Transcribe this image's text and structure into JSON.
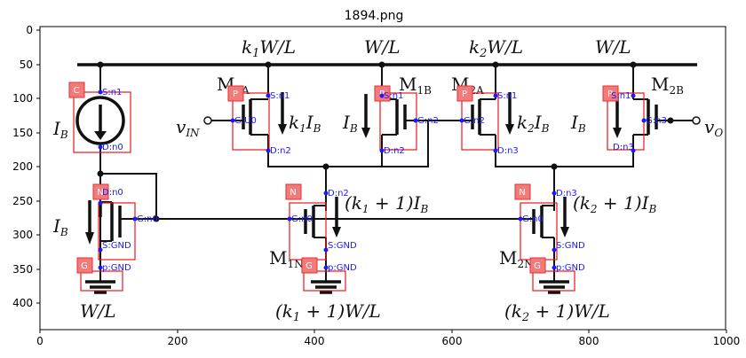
{
  "figure": {
    "title": "1894.png",
    "x_ticks": [
      "0",
      "200",
      "400",
      "600",
      "800",
      "1000"
    ],
    "y_ticks": [
      "0",
      "50",
      "100",
      "150",
      "200",
      "250",
      "300",
      "350",
      "400"
    ]
  },
  "circuit": {
    "top_labels": [
      "k",
      "1",
      "W/L",
      "W/L",
      "k",
      "2",
      "W/L",
      "W/L"
    ],
    "bottom_labels": [
      "W/L",
      "(k",
      "1",
      " + 1)W/L",
      "(k",
      "2",
      " + 1)W/L"
    ],
    "currents": {
      "ib_source": "I",
      "ib_sub": "B",
      "k1ib": "k",
      "k1ib_sub1": "1",
      "k1ib_i": "I",
      "k1ib_sub2": "B",
      "ib_mid": "I",
      "ib_mid_sub": "B",
      "k2ib": "k",
      "k2ib_sub1": "2",
      "k2ib_i": "I",
      "k2ib_sub2": "B",
      "ib_right": "I",
      "ib_right_sub": "B",
      "ib_low": "I",
      "ib_low_sub": "B",
      "k1p1": "(k",
      "k1p1_sub": "1",
      "k1p1_rest": " + 1)I",
      "k1p1_sub2": "B",
      "k2p1": "(k",
      "k2p1_sub": "2",
      "k2p1_rest": " + 1)I",
      "k2p1_sub2": "B"
    },
    "terminals": {
      "vin": "v",
      "vin_sub": "IN",
      "vo": "v",
      "vo_sub": "O"
    },
    "transistor_names": {
      "m1a": "M",
      "m1a_sub": "1A",
      "m1b": "M",
      "m1b_sub": "1B",
      "m2a": "M",
      "m2a_sub": "2A",
      "m2b": "M",
      "m2b_sub": "2B",
      "m1n": "M",
      "m1n_sub": "1N",
      "m2n": "M",
      "m2n_sub": "2N"
    }
  },
  "annotations": {
    "badges": [
      "C",
      "P",
      "P",
      "P",
      "P",
      "N",
      "N",
      "N",
      "G",
      "G",
      "G"
    ],
    "pins": [
      "S:n1",
      "D:n0",
      "S:n1",
      "G:U0",
      "D:n2",
      "S:n1",
      "G:n2",
      "D:n2",
      "S:n1",
      "G:n2",
      "D:n3",
      "S:n1",
      "G:n3",
      "D:n3",
      "D:n0",
      "G:n0",
      "S:GND",
      "D:n2",
      "G:n0",
      "S:GND",
      "D:n3",
      "G:n0",
      "S:GND",
      "p:GND",
      "p:GND",
      "p:GND"
    ],
    "colors": {
      "box": "#e8171b",
      "badge": "#f27a7a",
      "pin": "#1a1aff",
      "wire": "#111111"
    }
  }
}
